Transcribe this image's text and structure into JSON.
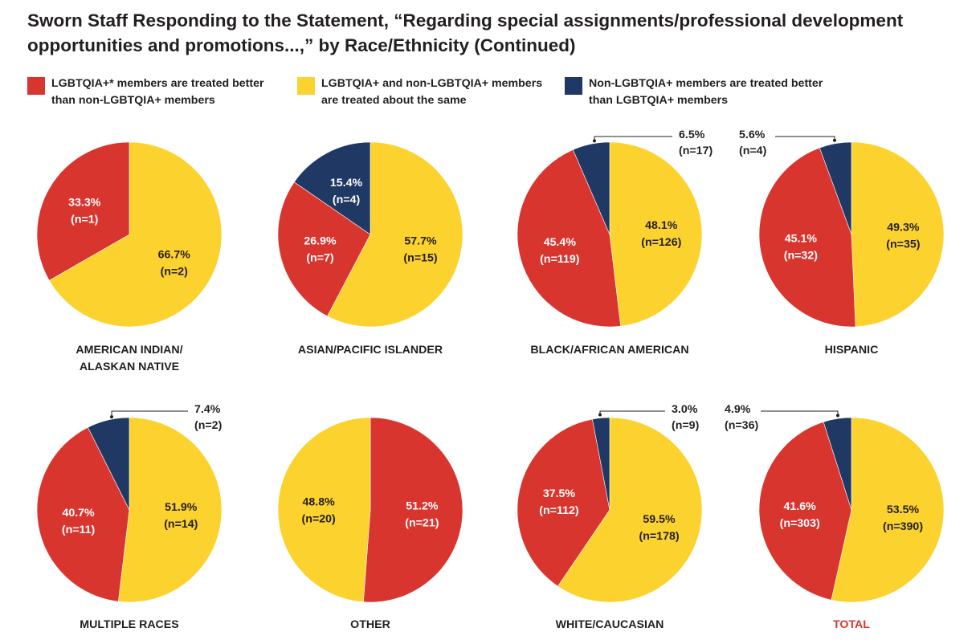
{
  "title": "Sworn Staff Responding to the Statement, “Regarding special assignments/professional development opportunities and promotions...,” by Race/Ethnicity (Continued)",
  "legend": [
    {
      "label": "LGBTQIA+* members are treated better\nthan non-LGBTQIA+ members",
      "color": "#d9352f"
    },
    {
      "label": "LGBTQIA+ and non-LGBTQIA+ members\nare treated about the same",
      "color": "#fcd22e"
    },
    {
      "label": "Non-LGBTQIA+ members are treated better\nthan LGBTQIA+ members",
      "color": "#1f3864"
    }
  ],
  "colors": {
    "better": "#d9352f",
    "same": "#fcd22e",
    "worse": "#1f3864",
    "total_label": "#d9352f"
  },
  "chart_data": [
    {
      "type": "pie",
      "title": "AMERICAN INDIAN/\nALASKAN NATIVE",
      "slices": [
        {
          "series": "same",
          "pct": 66.7,
          "n": 2,
          "label": "66.7%",
          "n_label": "(n=2)"
        },
        {
          "series": "better",
          "pct": 33.3,
          "n": 1,
          "label": "33.3%",
          "n_label": "(n=1)"
        }
      ]
    },
    {
      "type": "pie",
      "title": "ASIAN/PACIFIC ISLANDER",
      "slices": [
        {
          "series": "same",
          "pct": 57.7,
          "n": 15,
          "label": "57.7%",
          "n_label": "(n=15)"
        },
        {
          "series": "better",
          "pct": 26.9,
          "n": 7,
          "label": "26.9%",
          "n_label": "(n=7)"
        },
        {
          "series": "worse",
          "pct": 15.4,
          "n": 4,
          "label": "15.4%",
          "n_label": "(n=4)"
        }
      ]
    },
    {
      "type": "pie",
      "title": "BLACK/AFRICAN AMERICAN",
      "slices": [
        {
          "series": "same",
          "pct": 48.1,
          "n": 126,
          "label": "48.1%",
          "n_label": "(n=126)"
        },
        {
          "series": "better",
          "pct": 45.4,
          "n": 119,
          "label": "45.4%",
          "n_label": "(n=119)"
        },
        {
          "series": "worse",
          "pct": 6.5,
          "n": 17,
          "label": "6.5%",
          "n_label": "(n=17)"
        }
      ]
    },
    {
      "type": "pie",
      "title": "HISPANIC",
      "slices": [
        {
          "series": "same",
          "pct": 49.3,
          "n": 35,
          "label": "49.3%",
          "n_label": "(n=35)"
        },
        {
          "series": "better",
          "pct": 45.1,
          "n": 32,
          "label": "45.1%",
          "n_label": "(n=32)"
        },
        {
          "series": "worse",
          "pct": 5.6,
          "n": 4,
          "label": "5.6%",
          "n_label": "(n=4)"
        }
      ]
    },
    {
      "type": "pie",
      "title": "MULTIPLE RACES",
      "slices": [
        {
          "series": "same",
          "pct": 51.9,
          "n": 14,
          "label": "51.9%",
          "n_label": "(n=14)"
        },
        {
          "series": "better",
          "pct": 40.7,
          "n": 11,
          "label": "40.7%",
          "n_label": "(n=11)"
        },
        {
          "series": "worse",
          "pct": 7.4,
          "n": 2,
          "label": "7.4%",
          "n_label": "(n=2)"
        }
      ]
    },
    {
      "type": "pie",
      "title": "OTHER",
      "slices": [
        {
          "series": "better",
          "pct": 51.2,
          "n": 21,
          "label": "51.2%",
          "n_label": "(n=21)"
        },
        {
          "series": "same",
          "pct": 48.8,
          "n": 20,
          "label": "48.8%",
          "n_label": "(n=20)"
        }
      ]
    },
    {
      "type": "pie",
      "title": "WHITE/CAUCASIAN",
      "slices": [
        {
          "series": "same",
          "pct": 59.5,
          "n": 178,
          "label": "59.5%",
          "n_label": "(n=178)"
        },
        {
          "series": "better",
          "pct": 37.5,
          "n": 112,
          "label": "37.5%",
          "n_label": "(n=112)"
        },
        {
          "series": "worse",
          "pct": 3.0,
          "n": 9,
          "label": "3.0%",
          "n_label": "(n=9)"
        }
      ]
    },
    {
      "type": "pie",
      "title": "TOTAL",
      "title_color": "#d9352f",
      "slices": [
        {
          "series": "same",
          "pct": 53.5,
          "n": 390,
          "label": "53.5%",
          "n_label": "(n=390)"
        },
        {
          "series": "better",
          "pct": 41.6,
          "n": 303,
          "label": "41.6%",
          "n_label": "(n=303)"
        },
        {
          "series": "worse",
          "pct": 4.9,
          "n": 36,
          "label": "4.9%",
          "n_label": "(n=36)"
        }
      ]
    }
  ]
}
